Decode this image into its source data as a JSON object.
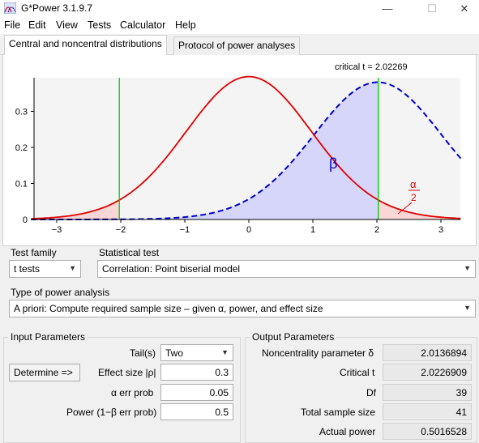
{
  "window": {
    "title": "G*Power 3.1.9.7",
    "minimize": "—",
    "maximize": "☐",
    "close": "✕"
  },
  "menu": [
    "File",
    "Edit",
    "View",
    "Tests",
    "Calculator",
    "Help"
  ],
  "tabs": [
    "Central and noncentral distributions",
    "Protocol of power analyses"
  ],
  "plot": {
    "critical_label": "critical t = 2.02269",
    "critical_t": 2.02269,
    "noncentrality": 2.0136894,
    "df": 39,
    "beta_label": "β",
    "alpha_label": "α",
    "alpha_den": "2",
    "colors": {
      "central": "#e00000",
      "noncentral": "#0000cc",
      "critical": "#00cc00",
      "beta_fill": "#d6d6fb",
      "alpha_fill": "#fbd6d6"
    },
    "x_ticks": [
      "−3",
      "−2",
      "−1",
      "0",
      "1",
      "2",
      "3"
    ],
    "y_ticks": [
      "0",
      "0.1",
      "0.2",
      "0.3"
    ]
  },
  "test_family": {
    "label": "Test family",
    "value": "t tests"
  },
  "statistical_test": {
    "label": "Statistical test",
    "value": "Correlation: Point biserial model"
  },
  "power_analysis": {
    "label": "Type of power analysis",
    "value": "A priori: Compute required sample size – given α, power, and effect size"
  },
  "input": {
    "title": "Input Parameters",
    "determine": "Determine =>",
    "tails_label": "Tail(s)",
    "tails_value": "Two",
    "effect_label": "Effect size |ρ|",
    "effect_value": "0.3",
    "alpha_label": "α err prob",
    "alpha_value": "0.05",
    "power_label": "Power (1−β err prob)",
    "power_value": "0.5"
  },
  "output": {
    "title": "Output Parameters",
    "rows": [
      {
        "label": "Noncentrality parameter δ",
        "value": "2.0136894"
      },
      {
        "label": "Critical t",
        "value": "2.0226909"
      },
      {
        "label": "Df",
        "value": "39"
      },
      {
        "label": "Total sample size",
        "value": "41"
      },
      {
        "label": "Actual power",
        "value": "0.5016528"
      }
    ]
  }
}
